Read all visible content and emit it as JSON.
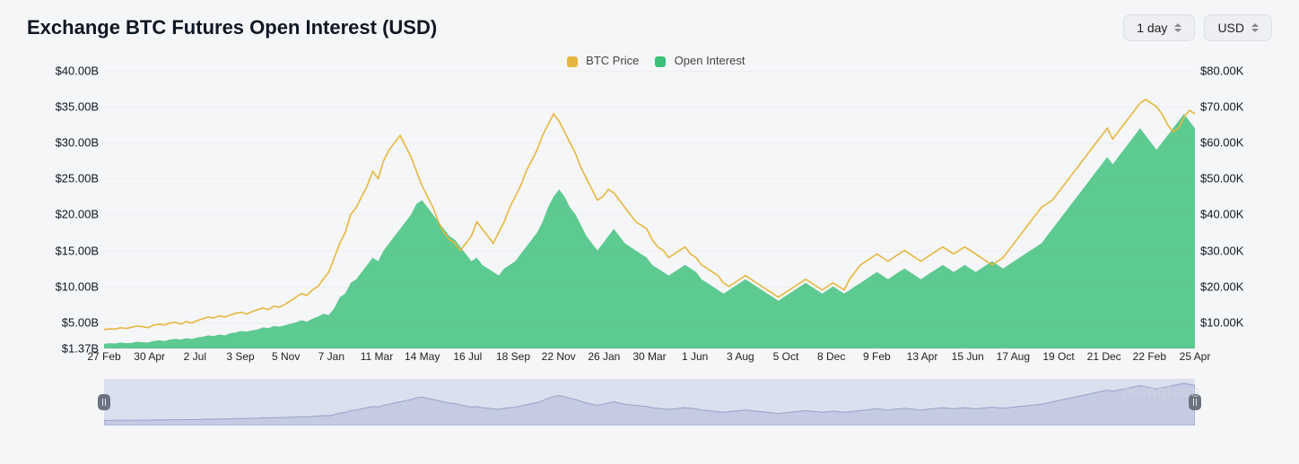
{
  "title": "Exchange BTC Futures Open Interest (USD)",
  "controls": {
    "period": "1 day",
    "currency": "USD"
  },
  "legend": {
    "series1": {
      "label": "BTC Price",
      "color": "#e6b73e"
    },
    "series2": {
      "label": "Open Interest",
      "color": "#3cc07a"
    }
  },
  "chart": {
    "background_color": "#f5f6f8",
    "grid_color": "#eceef1",
    "baseline_color": "#bfc4cc",
    "area_color": "#3cc07a",
    "area_opacity": 0.82,
    "line_color": "#e6b73e",
    "line_width": 1.6,
    "y_left": {
      "min": 1.37,
      "max": 40,
      "ticks": [
        40,
        35,
        30,
        25,
        20,
        15,
        10,
        5,
        1.37
      ],
      "labels": [
        "$40.00B",
        "$35.00B",
        "$30.00B",
        "$25.00B",
        "$20.00B",
        "$15.00B",
        "$10.00B",
        "$5.00B",
        "$1.37B"
      ]
    },
    "y_right": {
      "min": 2.74,
      "max": 80,
      "ticks": [
        80,
        70,
        60,
        50,
        40,
        30,
        20,
        10
      ],
      "labels": [
        "$80.00K",
        "$70.00K",
        "$60.00K",
        "$50.00K",
        "$40.00K",
        "$30.00K",
        "$20.00K",
        "$10.00K"
      ]
    },
    "x_labels": [
      "27 Feb",
      "30 Apr",
      "2 Jul",
      "3 Sep",
      "5 Nov",
      "7 Jan",
      "11 Mar",
      "14 May",
      "16 Jul",
      "18 Sep",
      "22 Nov",
      "26 Jan",
      "30 Mar",
      "1 Jun",
      "3 Aug",
      "5 Oct",
      "8 Dec",
      "9 Feb",
      "13 Apr",
      "15 Jun",
      "17 Aug",
      "19 Oct",
      "21 Dec",
      "22 Feb",
      "25 Apr"
    ],
    "n_points": 200,
    "open_interest": [
      2.0,
      2.1,
      2.05,
      2.2,
      2.1,
      2.15,
      2.3,
      2.25,
      2.2,
      2.4,
      2.5,
      2.4,
      2.6,
      2.7,
      2.6,
      2.8,
      2.7,
      2.9,
      3.0,
      3.2,
      3.1,
      3.3,
      3.2,
      3.5,
      3.6,
      3.8,
      3.7,
      3.9,
      4.0,
      4.3,
      4.2,
      4.5,
      4.4,
      4.6,
      4.8,
      5.0,
      5.3,
      5.1,
      5.5,
      5.8,
      6.2,
      6.0,
      7.0,
      8.5,
      9.0,
      10.5,
      11.0,
      12.0,
      13.0,
      14.0,
      13.5,
      15.0,
      16.0,
      17.0,
      18.0,
      19.0,
      20.0,
      21.5,
      22.0,
      21.0,
      20.0,
      19.0,
      18.0,
      17.0,
      16.5,
      15.5,
      14.5,
      13.5,
      14.0,
      13.0,
      12.5,
      12.0,
      11.5,
      12.5,
      13.0,
      13.5,
      14.5,
      15.5,
      16.5,
      17.5,
      19.0,
      21.0,
      22.5,
      23.5,
      22.5,
      21.0,
      20.0,
      18.5,
      17.0,
      16.0,
      15.0,
      16.0,
      17.0,
      18.0,
      17.0,
      16.0,
      15.5,
      15.0,
      14.5,
      14.0,
      13.0,
      12.5,
      12.0,
      11.5,
      12.0,
      12.5,
      13.0,
      12.5,
      12.0,
      11.0,
      10.5,
      10.0,
      9.5,
      9.0,
      9.5,
      10.0,
      10.5,
      11.0,
      10.5,
      10.0,
      9.5,
      9.0,
      8.5,
      8.0,
      8.5,
      9.0,
      9.5,
      10.0,
      10.5,
      10.0,
      9.5,
      9.0,
      9.5,
      10.0,
      9.5,
      9.0,
      9.5,
      10.0,
      10.5,
      11.0,
      11.5,
      12.0,
      11.5,
      11.0,
      11.5,
      12.0,
      12.5,
      12.0,
      11.5,
      11.0,
      11.5,
      12.0,
      12.5,
      13.0,
      12.5,
      12.0,
      12.5,
      13.0,
      12.5,
      12.0,
      12.5,
      13.0,
      13.5,
      13.0,
      12.5,
      13.0,
      13.5,
      14.0,
      14.5,
      15.0,
      15.5,
      16.0,
      17.0,
      18.0,
      19.0,
      20.0,
      21.0,
      22.0,
      23.0,
      24.0,
      25.0,
      26.0,
      27.0,
      28.0,
      27.0,
      28.0,
      29.0,
      30.0,
      31.0,
      32.0,
      31.0,
      30.0,
      29.0,
      30.0,
      31.0,
      32.0,
      33.0,
      34.0,
      33.0,
      32.0,
      31.0,
      34.0
    ],
    "btc_price": [
      8.0,
      8.2,
      8.1,
      8.5,
      8.3,
      8.6,
      9.0,
      8.8,
      8.5,
      9.2,
      9.5,
      9.3,
      9.8,
      10.0,
      9.5,
      10.2,
      9.8,
      10.5,
      11.0,
      11.5,
      11.2,
      11.8,
      11.5,
      12.0,
      12.5,
      12.8,
      12.3,
      13.0,
      13.5,
      14.0,
      13.5,
      14.5,
      14.2,
      15.0,
      16.0,
      17.0,
      18.0,
      17.5,
      19.0,
      20.0,
      22.0,
      24.0,
      28.0,
      32.0,
      35.0,
      40.0,
      42.0,
      45.0,
      48.0,
      52.0,
      50.0,
      55.0,
      58.0,
      60.0,
      62.0,
      59.0,
      56.0,
      52.0,
      48.0,
      45.0,
      42.0,
      38.0,
      35.0,
      33.0,
      32.0,
      30.0,
      32.0,
      34.0,
      38.0,
      36.0,
      34.0,
      32.0,
      35.0,
      38.0,
      42.0,
      45.0,
      48.0,
      52.0,
      55.0,
      58.0,
      62.0,
      65.0,
      68.0,
      66.0,
      63.0,
      60.0,
      57.0,
      53.0,
      50.0,
      47.0,
      44.0,
      45.0,
      47.0,
      46.0,
      44.0,
      42.0,
      40.0,
      38.0,
      37.0,
      36.0,
      33.0,
      31.0,
      30.0,
      28.0,
      29.0,
      30.0,
      31.0,
      29.0,
      28.0,
      26.0,
      25.0,
      24.0,
      23.0,
      21.0,
      20.0,
      21.0,
      22.0,
      23.0,
      22.0,
      21.0,
      20.0,
      19.0,
      18.0,
      17.0,
      18.0,
      19.0,
      20.0,
      21.0,
      22.0,
      21.0,
      20.0,
      19.0,
      20.0,
      21.0,
      20.0,
      19.0,
      22.0,
      24.0,
      26.0,
      27.0,
      28.0,
      29.0,
      28.0,
      27.0,
      28.0,
      29.0,
      30.0,
      29.0,
      28.0,
      27.0,
      28.0,
      29.0,
      30.0,
      31.0,
      30.0,
      29.0,
      30.0,
      31.0,
      30.0,
      29.0,
      28.0,
      27.0,
      26.0,
      27.0,
      28.0,
      30.0,
      32.0,
      34.0,
      36.0,
      38.0,
      40.0,
      42.0,
      43.0,
      44.0,
      46.0,
      48.0,
      50.0,
      52.0,
      54.0,
      56.0,
      58.0,
      60.0,
      62.0,
      64.0,
      61.0,
      63.0,
      65.0,
      67.0,
      69.0,
      71.0,
      72.0,
      71.0,
      70.0,
      68.0,
      65.0,
      63.0,
      64.0,
      67.0,
      69.0,
      68.0,
      65.0,
      71.0
    ]
  },
  "navigator": {
    "fill": "#c4cbe3",
    "stroke": "#98a2c9",
    "handle_bg": "#6b7280"
  },
  "watermark": "coinglass"
}
